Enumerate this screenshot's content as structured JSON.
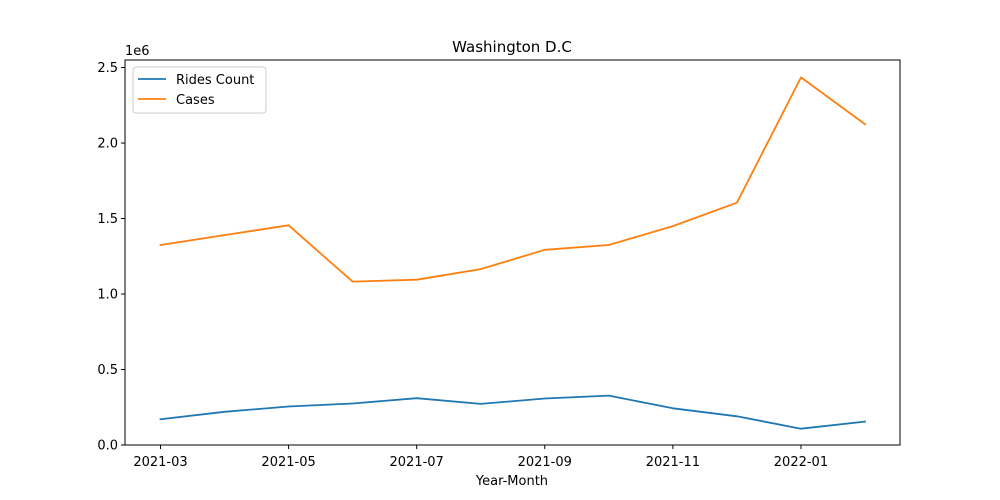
{
  "chart_data": {
    "type": "line",
    "title": "Washington D.C",
    "xlabel": "Year-Month",
    "ylabel": "",
    "y_offset_text": "1e6",
    "x": [
      "2021-03",
      "2021-04",
      "2021-05",
      "2021-06",
      "2021-07",
      "2021-08",
      "2021-09",
      "2021-10",
      "2021-11",
      "2021-12",
      "2022-01",
      "2022-02"
    ],
    "x_tick_labels": [
      "2021-03",
      "2021-05",
      "2021-07",
      "2021-09",
      "2021-11",
      "2022-01"
    ],
    "y_ticks": [
      0.0,
      0.5,
      1.0,
      1.5,
      2.0,
      2.5
    ],
    "y_tick_labels": [
      "0.0",
      "0.5",
      "1.0",
      "1.5",
      "2.0",
      "2.5"
    ],
    "ylim": [
      0,
      2.55
    ],
    "grid": false,
    "legend_position": "top-left",
    "series": [
      {
        "name": "Rides Count",
        "color": "#1f77b4",
        "values": [
          0.17,
          0.22,
          0.255,
          0.275,
          0.31,
          0.272,
          0.308,
          0.327,
          0.243,
          0.19,
          0.108,
          0.155
        ]
      },
      {
        "name": "Cases",
        "color": "#ff7f0e",
        "values": [
          1.325,
          1.39,
          1.455,
          1.082,
          1.095,
          1.165,
          1.293,
          1.325,
          1.45,
          1.605,
          2.435,
          2.125
        ]
      }
    ]
  }
}
